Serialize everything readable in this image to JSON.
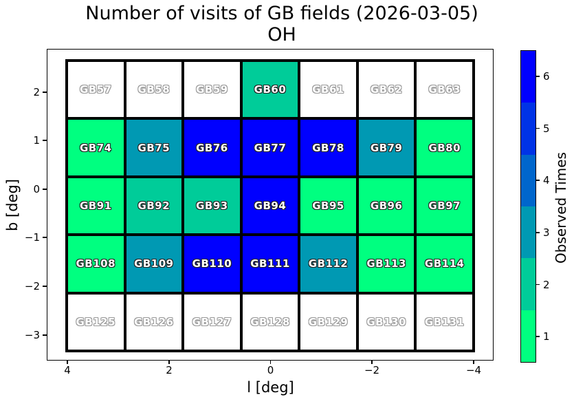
{
  "figure": {
    "title_line1": "Number of visits of GB fields (2026-03-05)",
    "title_line2": "OH"
  },
  "chart_data": {
    "type": "heatmap",
    "title": "Number of visits of GB fields (2026-03-05)",
    "subtitle": "OH",
    "xlabel": "l [deg]",
    "ylabel": "b [deg]",
    "x_ticks": [
      "4",
      "2",
      "0",
      "−2",
      "−4"
    ],
    "y_ticks": [
      "2",
      "1",
      "0",
      "−1",
      "−2",
      "−3"
    ],
    "x_axis_reversed": true,
    "grid": false,
    "empty_color": "#FFFFFF",
    "colorbar": {
      "label": "Observed Times",
      "ticks": [
        "1",
        "2",
        "3",
        "4",
        "5",
        "6"
      ],
      "levels": [
        {
          "value": 1,
          "color": "#00FF80"
        },
        {
          "value": 2,
          "color": "#00CC99"
        },
        {
          "value": 3,
          "color": "#0099B3"
        },
        {
          "value": 4,
          "color": "#0066CC"
        },
        {
          "value": 5,
          "color": "#0033E6"
        },
        {
          "value": 6,
          "color": "#0000FF"
        }
      ]
    },
    "rows": [
      {
        "b": 2,
        "fields": [
          {
            "label": "GB57",
            "visits": 0
          },
          {
            "label": "GB58",
            "visits": 0
          },
          {
            "label": "GB59",
            "visits": 0
          },
          {
            "label": "GB60",
            "visits": 2
          },
          {
            "label": "GB61",
            "visits": 0
          },
          {
            "label": "GB62",
            "visits": 0
          },
          {
            "label": "GB63",
            "visits": 0
          }
        ]
      },
      {
        "b": 1,
        "fields": [
          {
            "label": "GB74",
            "visits": 1
          },
          {
            "label": "GB75",
            "visits": 3
          },
          {
            "label": "GB76",
            "visits": 6
          },
          {
            "label": "GB77",
            "visits": 6
          },
          {
            "label": "GB78",
            "visits": 6
          },
          {
            "label": "GB79",
            "visits": 3
          },
          {
            "label": "GB80",
            "visits": 1
          }
        ]
      },
      {
        "b": 0,
        "fields": [
          {
            "label": "GB91",
            "visits": 1
          },
          {
            "label": "GB92",
            "visits": 2
          },
          {
            "label": "GB93",
            "visits": 2
          },
          {
            "label": "GB94",
            "visits": 6
          },
          {
            "label": "GB95",
            "visits": 1
          },
          {
            "label": "GB96",
            "visits": 1
          },
          {
            "label": "GB97",
            "visits": 1
          }
        ]
      },
      {
        "b": -1,
        "fields": [
          {
            "label": "GB108",
            "visits": 1
          },
          {
            "label": "GB109",
            "visits": 3
          },
          {
            "label": "GB110",
            "visits": 6
          },
          {
            "label": "GB111",
            "visits": 6
          },
          {
            "label": "GB112",
            "visits": 3
          },
          {
            "label": "GB113",
            "visits": 1
          },
          {
            "label": "GB114",
            "visits": 1
          }
        ]
      },
      {
        "b": -3,
        "fields": [
          {
            "label": "GB125",
            "visits": 0
          },
          {
            "label": "GB126",
            "visits": 0
          },
          {
            "label": "GB127",
            "visits": 0
          },
          {
            "label": "GB128",
            "visits": 0
          },
          {
            "label": "GB129",
            "visits": 0
          },
          {
            "label": "GB130",
            "visits": 0
          },
          {
            "label": "GB131",
            "visits": 0
          }
        ]
      }
    ]
  }
}
